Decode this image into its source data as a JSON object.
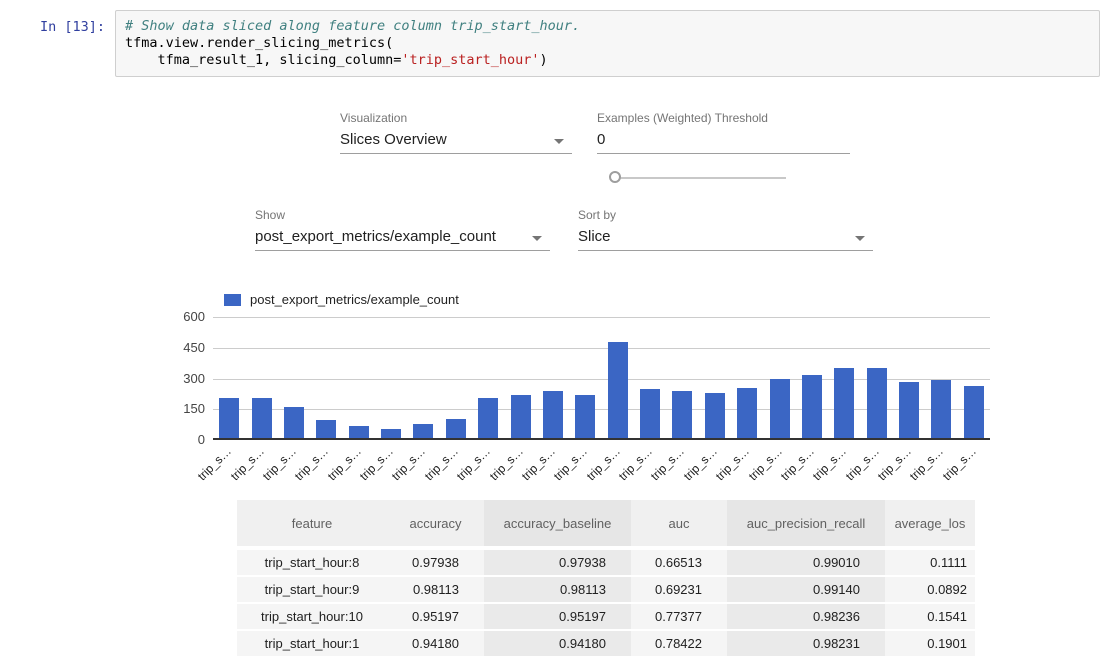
{
  "notebook": {
    "prompt": "In [13]:",
    "code_lines": [
      [
        {
          "text": "# Show data sliced along feature column trip_start_hour.",
          "style": "comment"
        }
      ],
      [
        {
          "text": "tfma.view.render_slicing_metrics(",
          "style": "plain"
        }
      ],
      [
        {
          "text": "    tfma_result_1, slicing_column=",
          "style": "plain"
        },
        {
          "text": "'trip_start_hour'",
          "style": "string"
        },
        {
          "text": ")",
          "style": "plain"
        }
      ]
    ]
  },
  "controls": {
    "visualization": {
      "label": "Visualization",
      "value": "Slices Overview"
    },
    "threshold": {
      "label": "Examples (Weighted) Threshold",
      "value": "0"
    },
    "show": {
      "label": "Show",
      "value": "post_export_metrics/example_count"
    },
    "sort_by": {
      "label": "Sort by",
      "value": "Slice"
    }
  },
  "chart_data": {
    "type": "bar",
    "legend": "post_export_metrics/example_count",
    "bar_color": "#3b66c4",
    "grid_color": "#cccccc",
    "baseline_color": "#333333",
    "ylim": [
      0,
      600
    ],
    "yticks": [
      0,
      150,
      300,
      450,
      600
    ],
    "categories": [
      "trip_s…",
      "trip_s…",
      "trip_s…",
      "trip_s…",
      "trip_s…",
      "trip_s…",
      "trip_s…",
      "trip_s…",
      "trip_s…",
      "trip_s…",
      "trip_s…",
      "trip_s…",
      "trip_s…",
      "trip_s…",
      "trip_s…",
      "trip_s…",
      "trip_s…",
      "trip_s…",
      "trip_s…",
      "trip_s…",
      "trip_s…",
      "trip_s…",
      "trip_s…",
      "trip_s…"
    ],
    "values": [
      195,
      193,
      150,
      88,
      60,
      45,
      68,
      93,
      195,
      210,
      228,
      208,
      470,
      238,
      228,
      220,
      245,
      288,
      307,
      340,
      340,
      272,
      283,
      252
    ]
  },
  "table": {
    "headers": [
      "feature",
      "accuracy",
      "accuracy_baseline",
      "auc",
      "auc_precision_recall",
      "average_los"
    ],
    "banded_columns": [
      2,
      4
    ],
    "rows": [
      [
        "trip_start_hour:8",
        "0.97938",
        "0.97938",
        "0.66513",
        "0.99010",
        "0.1111"
      ],
      [
        "trip_start_hour:9",
        "0.98113",
        "0.98113",
        "0.69231",
        "0.99140",
        "0.0892"
      ],
      [
        "trip_start_hour:10",
        "0.95197",
        "0.95197",
        "0.77377",
        "0.98236",
        "0.1541"
      ],
      [
        "trip_start_hour:1",
        "0.94180",
        "0.94180",
        "0.78422",
        "0.98231",
        "0.1901"
      ]
    ]
  }
}
